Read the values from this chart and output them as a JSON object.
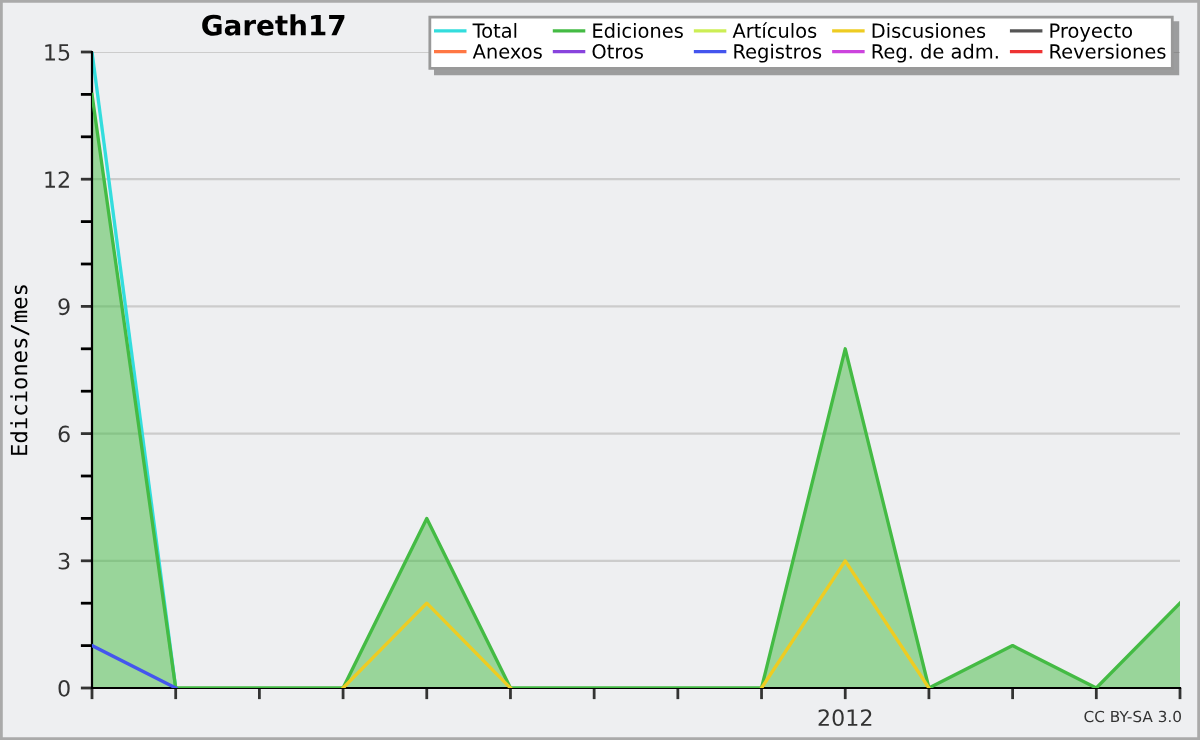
{
  "chart_data": {
    "type": "line",
    "title": "Gareth17",
    "ylabel": "Ediciones/mes",
    "categories": [
      null,
      null,
      null,
      null,
      null,
      null,
      null,
      null,
      null,
      "2012",
      null,
      null,
      null,
      null
    ],
    "ylim": [
      0,
      15
    ],
    "yticks": [
      0,
      {
        "value": 1,
        "label": null
      },
      {
        "value": 2,
        "label": null
      },
      3,
      {
        "value": 4,
        "label": null
      },
      {
        "value": 5,
        "label": null
      },
      6,
      {
        "value": 7,
        "label": null
      },
      {
        "value": 8,
        "label": null
      },
      9,
      {
        "value": 10,
        "label": null
      },
      {
        "value": 11,
        "label": null
      },
      12,
      {
        "value": 13,
        "label": null
      },
      {
        "value": 14,
        "label": null
      },
      15
    ],
    "grid": "y",
    "legend": "top right",
    "marker": "none",
    "line_style": "solid",
    "series": [
      {
        "name": "Total",
        "color": "#33dddd",
        "values": [
          15,
          0,
          null,
          null,
          null,
          null,
          null,
          null,
          null,
          null,
          null,
          null,
          null,
          null
        ]
      },
      {
        "name": "Ediciones",
        "color": "#44bb44",
        "type": "area",
        "values": [
          14,
          0,
          0,
          0,
          4,
          0,
          0,
          0,
          0,
          8,
          0,
          1,
          0,
          2
        ]
      },
      {
        "name": "Artículos",
        "color": "#ccee55",
        "values": [
          null,
          null,
          null,
          null,
          null,
          null,
          null,
          null,
          null,
          null,
          null,
          null,
          null,
          null
        ]
      },
      {
        "name": "Discusiones",
        "color": "#eecc22",
        "values": [
          null,
          null,
          null,
          0,
          2,
          0,
          null,
          null,
          0,
          3,
          0,
          null,
          null,
          null
        ]
      },
      {
        "name": "Proyecto",
        "color": "#555555",
        "values": [
          null,
          null,
          null,
          null,
          null,
          null,
          null,
          null,
          null,
          null,
          null,
          null,
          null,
          null
        ]
      },
      {
        "name": "Anexos",
        "color": "#ff7744",
        "values": [
          null,
          null,
          null,
          null,
          null,
          null,
          null,
          null,
          null,
          null,
          null,
          null,
          null,
          null
        ]
      },
      {
        "name": "Otros",
        "color": "#8844dd",
        "values": [
          null,
          null,
          null,
          null,
          null,
          null,
          null,
          null,
          null,
          null,
          null,
          null,
          null,
          null
        ]
      },
      {
        "name": "Registros",
        "color": "#4455ee",
        "values": [
          1,
          0,
          null,
          null,
          null,
          null,
          null,
          null,
          null,
          null,
          null,
          null,
          null,
          null
        ]
      },
      {
        "name": "Reg. de adm.",
        "color": "#cc44dd",
        "values": [
          null,
          null,
          null,
          null,
          null,
          null,
          null,
          null,
          null,
          null,
          null,
          null,
          null,
          null
        ]
      },
      {
        "name": "Reversiones",
        "color": "#ee3333",
        "values": [
          null,
          null,
          null,
          null,
          null,
          null,
          null,
          null,
          null,
          null,
          null,
          null,
          null,
          null
        ]
      }
    ],
    "annotations": [
      "CC BY-SA 3.0"
    ]
  }
}
